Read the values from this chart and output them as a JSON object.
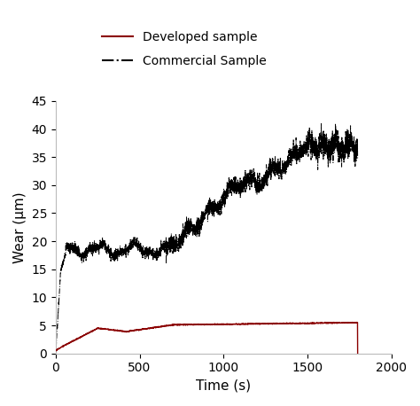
{
  "title": "",
  "xlabel": "Time (s)",
  "ylabel": "Wear (μm)",
  "xlim": [
    0,
    2000
  ],
  "ylim": [
    0,
    45
  ],
  "xticks": [
    0,
    500,
    1000,
    1500,
    2000
  ],
  "yticks": [
    0,
    5,
    10,
    15,
    20,
    25,
    30,
    35,
    40,
    45
  ],
  "legend1_label": "Developed sample",
  "legend2_label": "Commercial Sample",
  "line1_color": "#8b0000",
  "line2_color": "#000000",
  "background_color": "#ffffff",
  "figsize": [
    4.74,
    4.58
  ],
  "dpi": 100
}
